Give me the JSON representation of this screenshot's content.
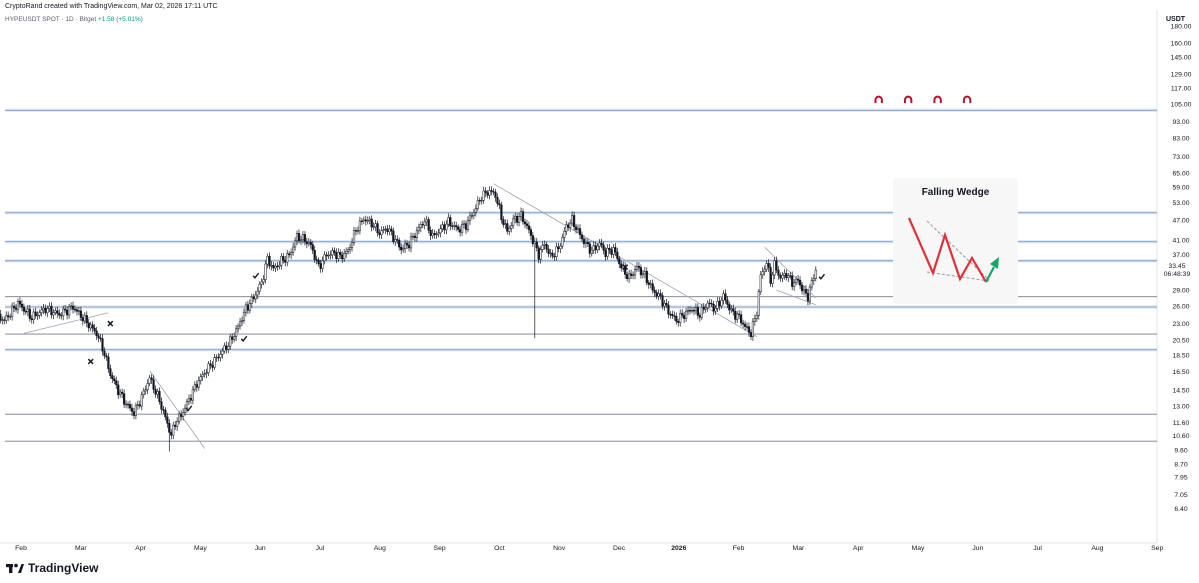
{
  "header": {
    "credit": "CryptoRand created with TradingView.com, Mar 02, 2026 17:11 UTC",
    "symbol": "HYPEUSDT SPOT · 1D · Bitget",
    "change": "+1.58 (+5.01%)"
  },
  "colors": {
    "up": "#ffffff",
    "down": "#131722",
    "level": "#b2c8e6",
    "support": "#787b86",
    "wedge_red": "#e0303a",
    "wedge_green": "#17a36b",
    "magnet": "#b3122e"
  },
  "brand": {
    "name": "TradingView",
    "icon": "tradingview-logo-icon"
  },
  "chart_data": {
    "type": "candlestick",
    "title": "",
    "ylabel": "USDT",
    "y_scale": "log",
    "ylim": [
      6.0,
      185
    ],
    "x_labels": [
      "Feb",
      "Mar",
      "Apr",
      "May",
      "Jun",
      "Jul",
      "Aug",
      "Sep",
      "Oct",
      "Nov",
      "Dec",
      "2026",
      "Feb",
      "Mar",
      "Apr",
      "May",
      "Jun",
      "Jul",
      "Aug",
      "Sep"
    ],
    "y_ticks": [
      "180.00",
      "160.00",
      "145.00",
      "129.00",
      "117.00",
      "105.00",
      "93.00",
      "83.00",
      "73.00",
      "65.00",
      "59.00",
      "53.00",
      "47.00",
      "41.00",
      "37.00",
      "29.00",
      "26.00",
      "23.00",
      "20.50",
      "18.50",
      "16.50",
      "14.50",
      "13.00",
      "11.60",
      "10.60",
      "9.60",
      "8.70",
      "7.95",
      "7.05",
      "6.40"
    ],
    "price_label": {
      "value": "33.45",
      "countdown": "06:48:39"
    },
    "horizontal_levels": [
      {
        "price": 100.5,
        "style": "resistance"
      },
      {
        "price": 49.5,
        "style": "resistance"
      },
      {
        "price": 40.5,
        "style": "resistance"
      },
      {
        "price": 35.5,
        "style": "resistance"
      },
      {
        "price": 27.7,
        "style": "support"
      },
      {
        "price": 25.8,
        "style": "resistance"
      },
      {
        "price": 21.4,
        "style": "support"
      },
      {
        "price": 19.2,
        "style": "resistance"
      },
      {
        "price": 12.3,
        "style": "support"
      },
      {
        "price": 10.2,
        "style": "support"
      }
    ],
    "trendlines": [
      {
        "from": [
          "2025-01-23",
          21.5
        ],
        "to": [
          "2025-03-07",
          24.8
        ]
      },
      {
        "from": [
          "2025-03-28",
          16.6
        ],
        "to": [
          "2025-04-25",
          9.7
        ]
      },
      {
        "from": [
          "2025-09-19",
          60.5
        ],
        "to": [
          "2026-01-31",
          21.0
        ]
      },
      {
        "from": [
          "2026-02-04",
          39.0
        ],
        "to": [
          "2026-03-02",
          27.5
        ]
      },
      {
        "from": [
          "2026-02-10",
          29.0
        ],
        "to": [
          "2026-03-02",
          26.2
        ]
      }
    ],
    "annotations": [
      {
        "type": "check",
        "date": "2025-05-21",
        "price": 32.0
      },
      {
        "type": "check",
        "date": "2025-05-15",
        "price": 20.7
      },
      {
        "type": "check",
        "date": "2025-04-17",
        "price": 12.8
      },
      {
        "type": "check",
        "date": "2026-03-05",
        "price": 31.8
      },
      {
        "type": "cross",
        "date": "2025-03-08",
        "price": 23.0
      },
      {
        "type": "cross",
        "date": "2025-02-26",
        "price": 17.7
      },
      {
        "type": "cross",
        "date": "2025-11-25",
        "price": 34.0
      },
      {
        "type": "magnet",
        "date": "2026-04-03",
        "price": 108
      },
      {
        "type": "magnet",
        "date": "2026-04-18",
        "price": 108
      },
      {
        "type": "magnet",
        "date": "2026-05-03",
        "price": 108
      },
      {
        "type": "magnet",
        "date": "2026-05-18",
        "price": 108
      }
    ],
    "anchors": [
      [
        "2025-01-06",
        25.0
      ],
      [
        "2025-01-13",
        23.5
      ],
      [
        "2025-01-20",
        26.5
      ],
      [
        "2025-01-27",
        24.0
      ],
      [
        "2025-02-03",
        25.5
      ],
      [
        "2025-02-10",
        24.5
      ],
      [
        "2025-02-17",
        25.8
      ],
      [
        "2025-02-24",
        23.2
      ],
      [
        "2025-03-01",
        21.5
      ],
      [
        "2025-03-04",
        19.5
      ],
      [
        "2025-03-08",
        16.2
      ],
      [
        "2025-03-12",
        14.5
      ],
      [
        "2025-03-16",
        13.2
      ],
      [
        "2025-03-20",
        12.4
      ],
      [
        "2025-03-24",
        13.8
      ],
      [
        "2025-03-28",
        15.8
      ],
      [
        "2025-04-02",
        13.5
      ],
      [
        "2025-04-05",
        12.0
      ],
      [
        "2025-04-08",
        10.6
      ],
      [
        "2025-04-10",
        11.6
      ],
      [
        "2025-04-13",
        12.2
      ],
      [
        "2025-04-17",
        13.6
      ],
      [
        "2025-04-21",
        15.2
      ],
      [
        "2025-04-25",
        16.4
      ],
      [
        "2025-04-30",
        17.8
      ],
      [
        "2025-05-04",
        19.0
      ],
      [
        "2025-05-08",
        20.3
      ],
      [
        "2025-05-12",
        22.5
      ],
      [
        "2025-05-16",
        25.5
      ],
      [
        "2025-05-20",
        27.5
      ],
      [
        "2025-05-24",
        30.5
      ],
      [
        "2025-05-27",
        36.0
      ],
      [
        "2025-05-30",
        33.5
      ],
      [
        "2025-06-03",
        35.5
      ],
      [
        "2025-06-07",
        36.8
      ],
      [
        "2025-06-11",
        42.0
      ],
      [
        "2025-06-15",
        41.0
      ],
      [
        "2025-06-18",
        39.5
      ],
      [
        "2025-06-22",
        34.0
      ],
      [
        "2025-06-26",
        37.0
      ],
      [
        "2025-06-30",
        37.5
      ],
      [
        "2025-07-03",
        36.5
      ],
      [
        "2025-07-07",
        38.0
      ],
      [
        "2025-07-11",
        44.0
      ],
      [
        "2025-07-15",
        47.5
      ],
      [
        "2025-07-19",
        46.0
      ],
      [
        "2025-07-23",
        43.0
      ],
      [
        "2025-07-27",
        44.5
      ],
      [
        "2025-07-31",
        41.0
      ],
      [
        "2025-08-03",
        38.5
      ],
      [
        "2025-08-07",
        40.0
      ],
      [
        "2025-08-11",
        43.5
      ],
      [
        "2025-08-15",
        47.0
      ],
      [
        "2025-08-19",
        42.0
      ],
      [
        "2025-08-23",
        44.0
      ],
      [
        "2025-08-27",
        46.5
      ],
      [
        "2025-09-01",
        44.0
      ],
      [
        "2025-09-05",
        45.5
      ],
      [
        "2025-09-09",
        50.0
      ],
      [
        "2025-09-13",
        55.5
      ],
      [
        "2025-09-17",
        57.5
      ],
      [
        "2025-09-20",
        56.0
      ],
      [
        "2025-09-23",
        48.0
      ],
      [
        "2025-09-26",
        43.5
      ],
      [
        "2025-09-29",
        47.0
      ],
      [
        "2025-10-03",
        48.5
      ],
      [
        "2025-10-06",
        45.0
      ],
      [
        "2025-10-09",
        41.0
      ],
      [
        "2025-10-12",
        37.0
      ],
      [
        "2025-10-15",
        40.0
      ],
      [
        "2025-10-18",
        36.5
      ],
      [
        "2025-10-22",
        38.5
      ],
      [
        "2025-10-26",
        45.0
      ],
      [
        "2025-10-29",
        47.0
      ],
      [
        "2025-11-01",
        43.5
      ],
      [
        "2025-11-04",
        40.5
      ],
      [
        "2025-11-08",
        38.0
      ],
      [
        "2025-11-12",
        40.0
      ],
      [
        "2025-11-15",
        37.5
      ],
      [
        "2025-11-19",
        38.5
      ],
      [
        "2025-11-23",
        34.0
      ],
      [
        "2025-11-27",
        31.5
      ],
      [
        "2025-12-01",
        34.0
      ],
      [
        "2025-12-05",
        32.0
      ],
      [
        "2025-12-09",
        29.0
      ],
      [
        "2025-12-13",
        27.5
      ],
      [
        "2025-12-17",
        25.0
      ],
      [
        "2025-12-21",
        23.5
      ],
      [
        "2025-12-25",
        24.5
      ],
      [
        "2025-12-29",
        25.5
      ],
      [
        "2026-01-02",
        24.5
      ],
      [
        "2026-01-06",
        26.5
      ],
      [
        "2026-01-10",
        25.5
      ],
      [
        "2026-01-14",
        27.8
      ],
      [
        "2026-01-18",
        25.0
      ],
      [
        "2026-01-22",
        24.0
      ],
      [
        "2026-01-25",
        22.5
      ],
      [
        "2026-01-28",
        21.5
      ],
      [
        "2026-01-31",
        25.0
      ],
      [
        "2026-02-02",
        32.0
      ],
      [
        "2026-02-05",
        35.0
      ],
      [
        "2026-02-07",
        31.0
      ],
      [
        "2026-02-09",
        34.5
      ],
      [
        "2026-02-12",
        31.5
      ],
      [
        "2026-02-15",
        32.5
      ],
      [
        "2026-02-18",
        30.5
      ],
      [
        "2026-02-21",
        31.0
      ],
      [
        "2026-02-24",
        28.5
      ],
      [
        "2026-02-26",
        27.8
      ],
      [
        "2026-02-28",
        30.5
      ],
      [
        "2026-03-02",
        33.4
      ]
    ],
    "wicks": [
      {
        "date": "2025-10-10",
        "low": 20.8
      },
      {
        "date": "2025-04-07",
        "low": 9.5
      }
    ]
  },
  "inset": {
    "title": "Falling Wedge"
  }
}
